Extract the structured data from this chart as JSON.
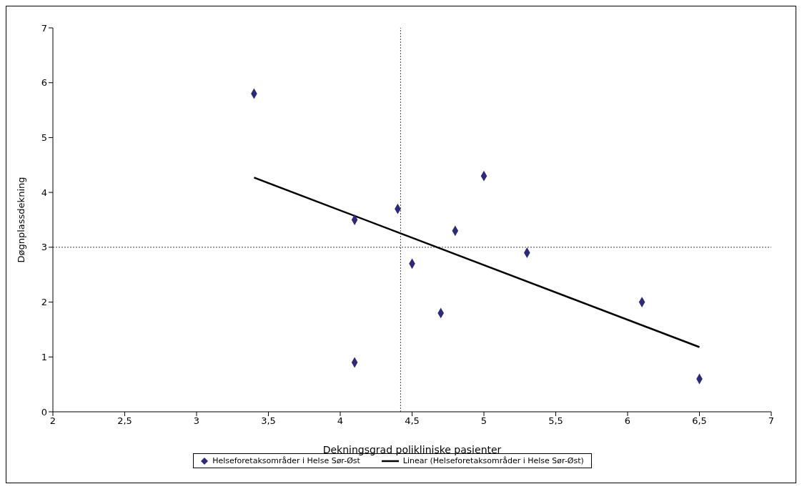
{
  "chart_data": {
    "type": "scatter",
    "xlabel": "Dekningsgrad polikliniske pasienter",
    "ylabel": "Døgnplassdekning",
    "xlim": [
      2,
      7
    ],
    "xticks": [
      2,
      {
        "value": 2.5,
        "label": "2,5"
      },
      3,
      {
        "value": 3.5,
        "label": "3,5"
      },
      4,
      {
        "value": 4.5,
        "label": "4,5"
      },
      5,
      {
        "value": 5.5,
        "label": "5,5"
      },
      6,
      {
        "value": 6.5,
        "label": "6,5"
      },
      7
    ],
    "ylim": [
      0,
      7
    ],
    "yticks": [
      0,
      1,
      2,
      3,
      4,
      5,
      6,
      7
    ],
    "grid": false,
    "legend": "bottom",
    "series": [
      {
        "name": "Helseforetaksområder i Helse Sør-Øst",
        "marker": "diamond",
        "color": "#2e2a78",
        "x": [
          3.4,
          4.1,
          4.1,
          4.4,
          4.5,
          4.7,
          4.8,
          5.0,
          5.3,
          6.1,
          6.5
        ],
        "values": [
          5.8,
          3.5,
          0.9,
          3.7,
          2.7,
          1.8,
          3.3,
          4.3,
          2.9,
          2.0,
          0.6
        ]
      },
      {
        "name": "Linear (Helseforetaksområder i Helse Sør-Øst)",
        "type": "line",
        "marker": "none",
        "line_style": "solid",
        "color": "#000000",
        "x": [
          3.4,
          6.5
        ],
        "values": [
          4.27,
          1.18
        ]
      }
    ],
    "ref_lines": [
      {
        "axis": "x",
        "value": 4.42,
        "color": "#444444",
        "line_style": "dotted"
      },
      {
        "axis": "y",
        "value": 3,
        "color": "#444444",
        "line_style": "dotted"
      }
    ]
  }
}
